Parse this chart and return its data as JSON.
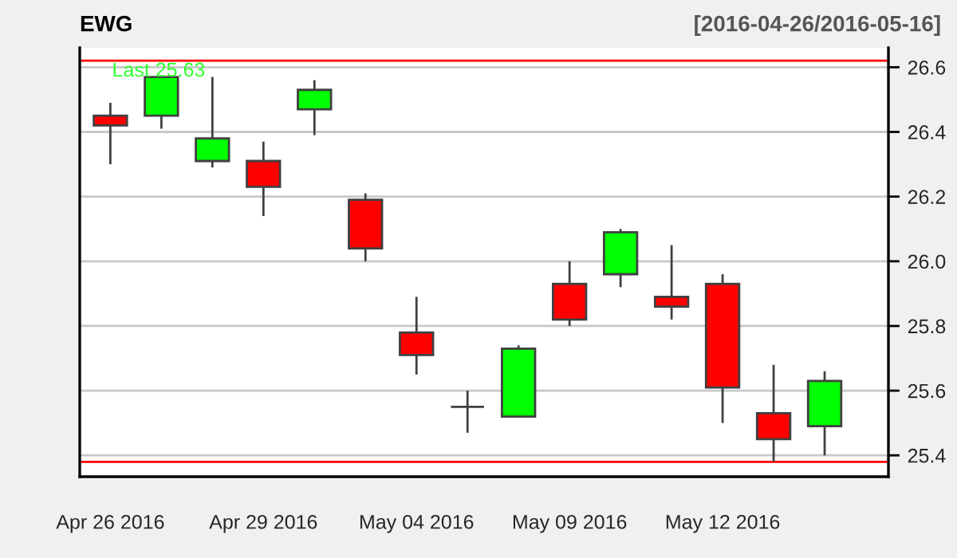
{
  "chart_data": {
    "type": "candlestick",
    "title": "EWG",
    "subtitle": "[2016-04-26/2016-05-16]",
    "categories": [
      "Apr 26 2016",
      null,
      null,
      "Apr 29 2016",
      null,
      null,
      "May 04 2016",
      null,
      null,
      "May 09 2016",
      null,
      null,
      "May 12 2016",
      null,
      null
    ],
    "ohlc": [
      [
        26.45,
        26.49,
        26.3,
        26.42
      ],
      [
        26.45,
        26.57,
        26.41,
        26.57
      ],
      [
        26.31,
        26.57,
        26.29,
        26.38
      ],
      [
        26.31,
        26.37,
        26.14,
        26.23
      ],
      [
        26.47,
        26.56,
        26.39,
        26.53
      ],
      [
        26.19,
        26.21,
        26.0,
        26.04
      ],
      [
        25.78,
        25.89,
        25.65,
        25.71
      ],
      [
        25.55,
        25.6,
        25.47,
        25.55
      ],
      [
        25.52,
        25.74,
        25.52,
        25.73
      ],
      [
        25.93,
        26.0,
        25.8,
        25.82
      ],
      [
        25.96,
        26.1,
        25.92,
        26.09
      ],
      [
        25.89,
        26.05,
        25.82,
        25.86
      ],
      [
        25.93,
        25.96,
        25.5,
        25.61
      ],
      [
        25.53,
        25.68,
        25.38,
        25.45
      ],
      [
        25.49,
        25.66,
        25.4,
        25.63
      ]
    ],
    "colors": [
      "#ff0000",
      "#00ff00",
      "#00ff00",
      "#ff0000",
      "#00ff00",
      "#ff0000",
      "#ff0000",
      "#404040",
      "#00ff00",
      "#ff0000",
      "#00ff00",
      "#ff0000",
      "#ff0000",
      "#ff0000",
      "#00ff00"
    ],
    "ylim": [
      25.334,
      26.66
    ],
    "yticks": [
      25.4,
      25.6,
      25.8,
      {
        "value": 26.0,
        "label": "26.0"
      },
      26.2,
      26.4,
      26.6
    ],
    "grid": "y",
    "ref_lines": [
      {
        "axis": "y",
        "value": 26.62,
        "color": "#ff0000"
      },
      {
        "axis": "y",
        "value": 25.38,
        "color": "#ff0000"
      }
    ],
    "annotations": [
      "Last 25.63"
    ]
  }
}
